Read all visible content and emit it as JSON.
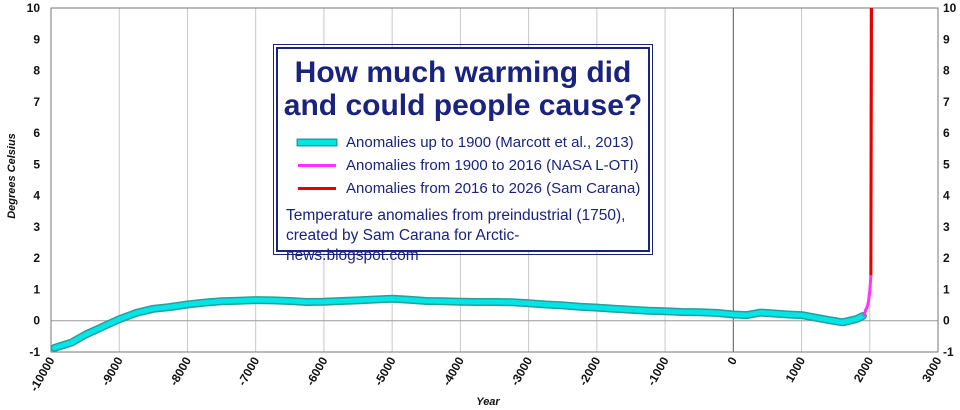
{
  "chart_data": {
    "type": "line",
    "title": "How much warming did\nand could people cause?",
    "ylabel": "Degrees Celsius",
    "xlabel": "Year",
    "xlim": [
      -10000,
      3000
    ],
    "ylim": [
      -1,
      10
    ],
    "x_ticks": [
      -10000,
      -9000,
      -8000,
      -7000,
      -6000,
      -5000,
      -4000,
      -3000,
      -2000,
      -1000,
      0,
      1000,
      2000,
      3000
    ],
    "y_ticks": [
      -1,
      0,
      1,
      2,
      3,
      4,
      5,
      6,
      7,
      8,
      9,
      10
    ],
    "grid": "vertical",
    "legend_position": "top-center",
    "series": [
      {
        "name": "Anomalies up to 1900 (Marcott et al., 2013)",
        "color": "#00e5e5",
        "x": [
          -9950,
          -9700,
          -9500,
          -9250,
          -9000,
          -8750,
          -8500,
          -8250,
          -8000,
          -7750,
          -7500,
          -7250,
          -7000,
          -6750,
          -6500,
          -6250,
          -6000,
          -5750,
          -5500,
          -5250,
          -5000,
          -4750,
          -4500,
          -4250,
          -4000,
          -3750,
          -3500,
          -3250,
          -3000,
          -2750,
          -2500,
          -2250,
          -2000,
          -1750,
          -1500,
          -1250,
          -1000,
          -750,
          -500,
          -250,
          0,
          200,
          400,
          600,
          800,
          1000,
          1200,
          1400,
          1600,
          1800,
          1900
        ],
        "y": [
          -0.87,
          -0.7,
          -0.45,
          -0.2,
          0.05,
          0.25,
          0.38,
          0.44,
          0.52,
          0.58,
          0.62,
          0.64,
          0.66,
          0.65,
          0.63,
          0.6,
          0.61,
          0.63,
          0.65,
          0.68,
          0.7,
          0.67,
          0.63,
          0.62,
          0.61,
          0.6,
          0.6,
          0.59,
          0.56,
          0.52,
          0.49,
          0.45,
          0.42,
          0.38,
          0.35,
          0.32,
          0.3,
          0.28,
          0.27,
          0.25,
          0.2,
          0.18,
          0.26,
          0.23,
          0.2,
          0.18,
          0.1,
          0.02,
          -0.05,
          0.05,
          0.15
        ]
      },
      {
        "name": "Anomalies from 1900 to 2016 (NASA L-OTI)",
        "color": "#ff33ff",
        "x": [
          1900,
          1920,
          1940,
          1960,
          1980,
          2000,
          2016
        ],
        "y": [
          0.15,
          0.2,
          0.35,
          0.42,
          0.6,
          0.95,
          1.45
        ]
      },
      {
        "name": "Anomalies from 2016 to 2026 (Sam Carana)",
        "color": "#e60000",
        "x": [
          2016,
          2026
        ],
        "y": [
          1.45,
          10
        ]
      }
    ],
    "annotation": "Temperature anomalies from preindustrial (1750),\ncreated by Sam Carana for Arctic-news.blogspot.com"
  }
}
